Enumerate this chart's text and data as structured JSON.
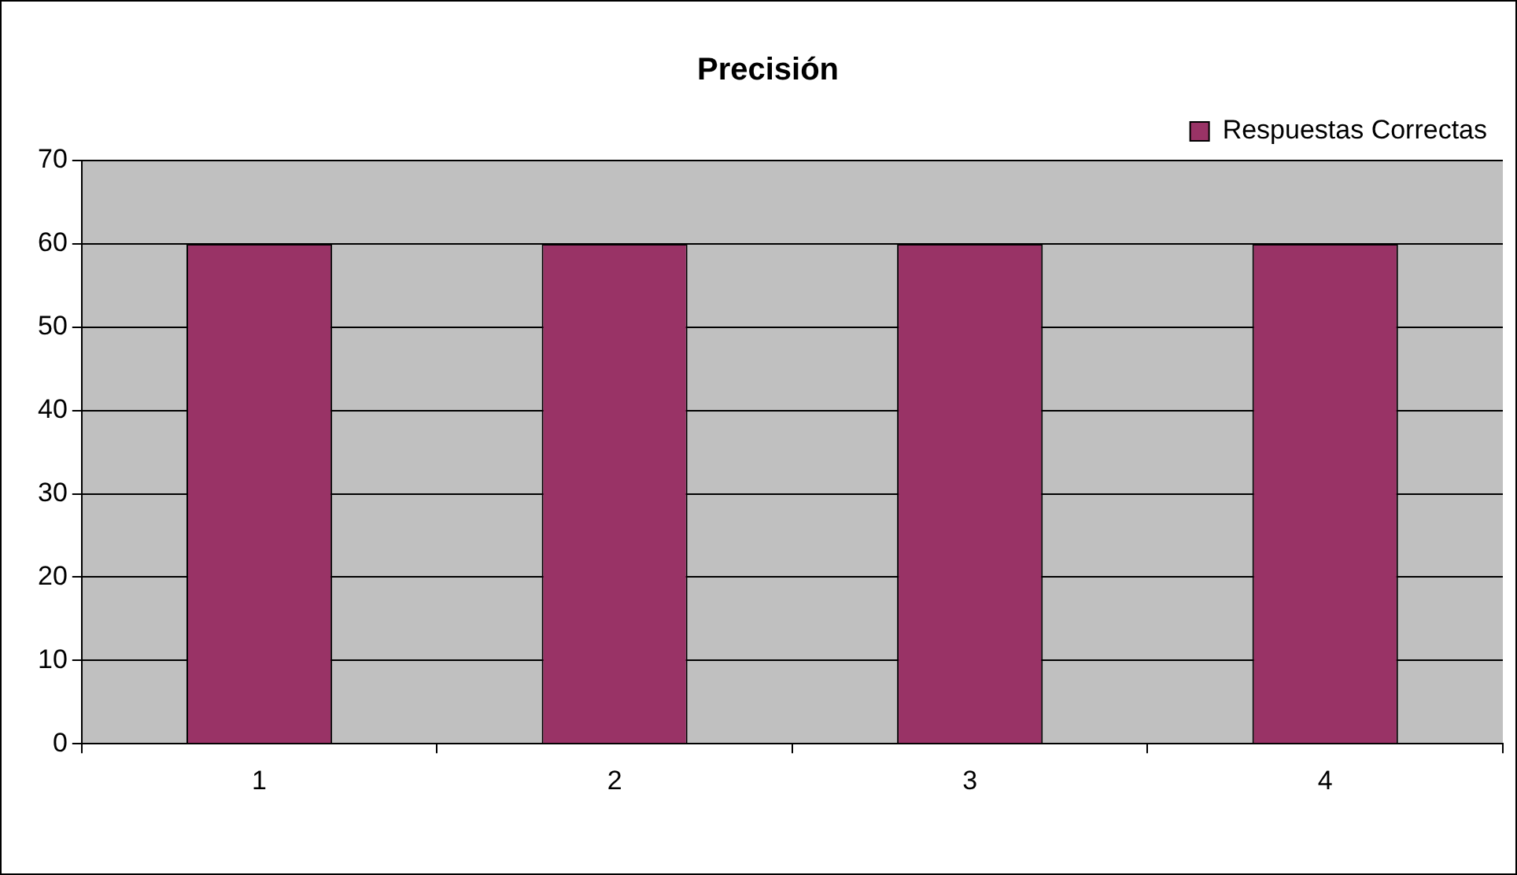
{
  "chart_data": {
    "type": "bar",
    "title": "Precisión",
    "categories": [
      "1",
      "2",
      "3",
      "4"
    ],
    "series": [
      {
        "name": "Respuestas Correctas",
        "color": "#993366",
        "values": [
          60,
          60,
          60,
          60
        ]
      }
    ],
    "ylim": [
      0,
      70
    ],
    "yticks": [
      0,
      10,
      20,
      30,
      40,
      50,
      60,
      70
    ],
    "grid": "y",
    "legend": "top right"
  }
}
